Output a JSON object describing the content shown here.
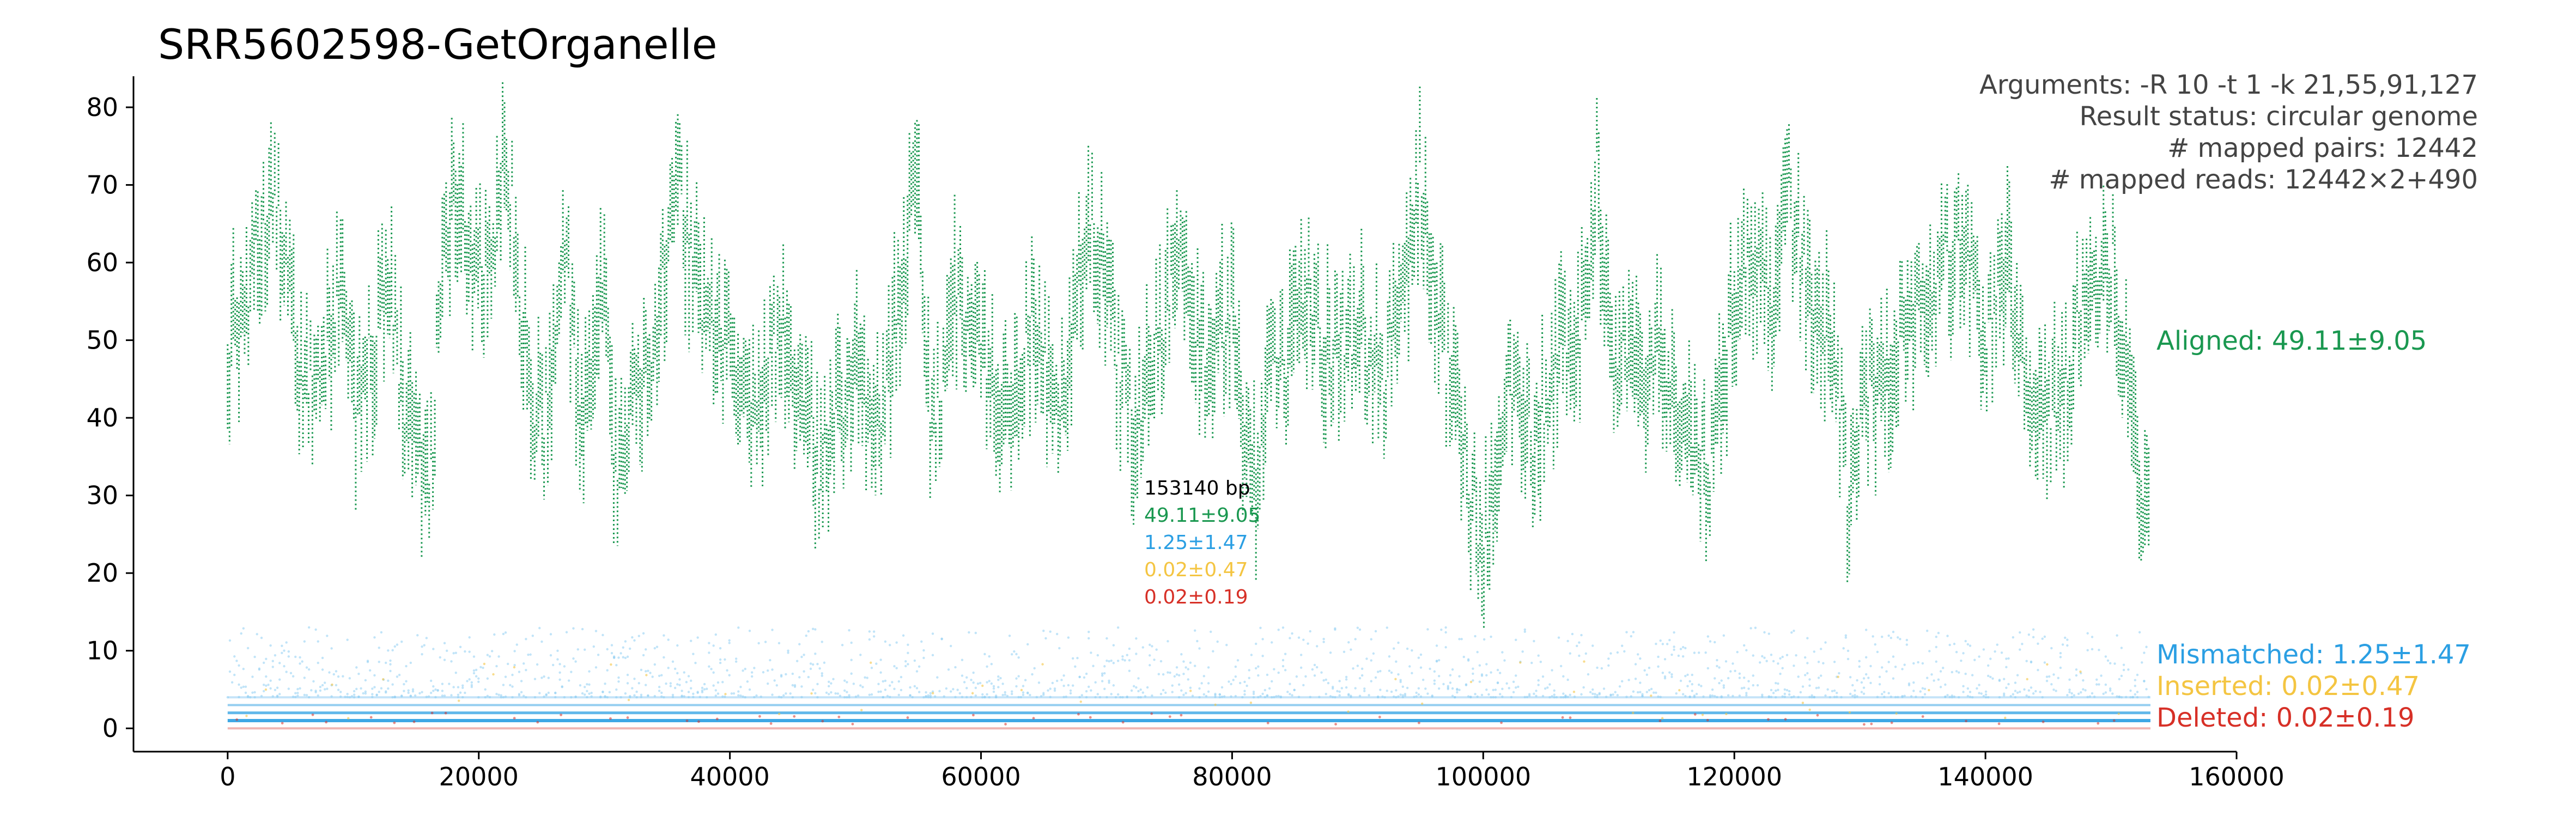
{
  "chart_data": {
    "type": "scatter",
    "title": "SRR5602598-GetOrganelle",
    "xlabel": "",
    "ylabel": "",
    "xlim": [
      -7500,
      160000
    ],
    "ylim": [
      -3,
      84
    ],
    "x_ticks": [
      0,
      20000,
      40000,
      60000,
      80000,
      100000,
      120000,
      140000,
      160000
    ],
    "y_ticks": [
      0,
      10,
      20,
      30,
      40,
      50,
      60,
      70,
      80
    ],
    "x_tick_labels": [
      "0",
      "20000",
      "40000",
      "60000",
      "80000",
      "100000",
      "120000",
      "140000",
      "160000"
    ],
    "y_tick_labels": [
      "0",
      "10",
      "20",
      "30",
      "40",
      "50",
      "60",
      "70",
      "80"
    ],
    "grid": false,
    "genome_length": 153140,
    "info": [
      "Arguments: -R 10 -t 1 -k 21,55,91,127",
      "Result status: circular genome",
      "# mapped pairs: 12442",
      "# mapped reads: 12442×2+490"
    ],
    "center_stats": {
      "length": "153140 bp",
      "aligned": "49.11±9.05",
      "mismatched": "1.25±1.47",
      "inserted": "0.02±0.47",
      "deleted": "0.02±0.19"
    },
    "series": [
      {
        "name": "Aligned: 49.11±9.05",
        "color": "#1a9850",
        "mean": 49.11,
        "sd": 9.05,
        "x": [
          0,
          2000,
          3000,
          4000,
          5000,
          6000,
          7000,
          8000,
          9000,
          10000,
          11000,
          12000,
          13000,
          14000,
          15000,
          16000,
          17000,
          18000,
          19000,
          20000,
          21000,
          22000,
          23000,
          24000,
          25000,
          26000,
          27000,
          28000,
          30000,
          31000,
          32000,
          34000,
          35000,
          36000,
          37000,
          38000,
          40000,
          42000,
          44000,
          46000,
          47000,
          48000,
          50000,
          52000,
          53000,
          55000,
          56000,
          58000,
          60000,
          62000,
          64000,
          66000,
          68000,
          69000,
          70000,
          72000,
          74000,
          76000,
          78000,
          80000,
          81000,
          82000,
          83000,
          84000,
          86000,
          88000,
          90000,
          92000,
          94000,
          95000,
          96000,
          98000,
          99000,
          100000,
          102000,
          104000,
          106000,
          108000,
          109000,
          110000,
          112000,
          114000,
          116000,
          118000,
          120000,
          122000,
          123000,
          124000,
          126000,
          128000,
          129000,
          130000,
          132000,
          134000,
          136000,
          138000,
          140000,
          141000,
          142000,
          144000,
          146000,
          148000,
          150000,
          151000,
          152000,
          153140
        ],
        "y": [
          48,
          58,
          65,
          68,
          55,
          45,
          42,
          50,
          60,
          40,
          45,
          52,
          58,
          42,
          36,
          28,
          55,
          72,
          63,
          58,
          60,
          74,
          62,
          44,
          38,
          50,
          60,
          40,
          55,
          30,
          42,
          50,
          62,
          68,
          58,
          55,
          48,
          40,
          52,
          45,
          32,
          38,
          46,
          40,
          50,
          72,
          38,
          55,
          48,
          38,
          52,
          42,
          58,
          66,
          55,
          38,
          50,
          60,
          45,
          55,
          38,
          32,
          48,
          45,
          55,
          48,
          52,
          45,
          60,
          72,
          55,
          40,
          30,
          22,
          45,
          36,
          48,
          52,
          72,
          50,
          45,
          48,
          40,
          30,
          55,
          62,
          52,
          70,
          55,
          48,
          30,
          42,
          45,
          52,
          58,
          62,
          50,
          56,
          58,
          42,
          40,
          58,
          62,
          48,
          35,
          28
        ]
      },
      {
        "name": "Mismatched: 1.25±1.47",
        "color": "#2b9fe3",
        "mean": 1.25,
        "sd": 1.47
      },
      {
        "name": "Inserted: 0.02±0.47",
        "color": "#f4c542",
        "mean": 0.02,
        "sd": 0.47
      },
      {
        "name": "Deleted: 0.02±0.19",
        "color": "#d73027",
        "mean": 0.02,
        "sd": 0.19
      }
    ]
  }
}
